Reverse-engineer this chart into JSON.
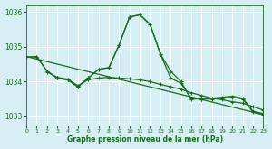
{
  "xlabel": "Graphe pression niveau de la mer (hPa)",
  "ylim": [
    1032.75,
    1036.2
  ],
  "xlim": [
    0,
    23
  ],
  "xticks": [
    0,
    1,
    2,
    3,
    4,
    5,
    6,
    7,
    8,
    9,
    10,
    11,
    12,
    13,
    14,
    15,
    16,
    17,
    18,
    19,
    20,
    21,
    22,
    23
  ],
  "yticks": [
    1033,
    1034,
    1035,
    1036
  ],
  "background_color": "#d6eff5",
  "grid_color": "#ffffff",
  "line_color": "#1a6b1a",
  "series": [
    {
      "x": [
        0,
        1,
        2,
        3,
        4,
        5,
        6,
        7,
        8,
        9,
        10,
        11,
        12,
        13,
        14,
        15,
        16,
        17,
        18,
        19,
        20,
        21,
        22,
        23
      ],
      "y": [
        1034.7,
        1034.72,
        1034.3,
        1034.1,
        1034.05,
        1033.85,
        1034.1,
        1034.35,
        1034.4,
        1035.05,
        1035.85,
        1035.92,
        1035.65,
        1034.8,
        1034.3,
        1034.0,
        1033.5,
        1033.5,
        1033.52,
        1033.55,
        1033.58,
        1033.52,
        1033.15,
        1033.08
      ]
    },
    {
      "x": [
        2,
        3,
        4,
        5,
        6,
        7,
        8,
        9,
        10,
        11,
        12,
        13,
        14,
        15,
        16,
        17,
        18,
        19,
        20,
        21,
        22,
        23
      ],
      "y": [
        1034.28,
        1034.12,
        1034.07,
        1033.88,
        1034.05,
        1034.1,
        1034.12,
        1034.1,
        1034.08,
        1034.05,
        1034.0,
        1033.92,
        1033.85,
        1033.78,
        1033.68,
        1033.6,
        1033.52,
        1033.48,
        1033.42,
        1033.38,
        1033.28,
        1033.18
      ]
    },
    {
      "x": [
        0,
        23
      ],
      "y": [
        1034.72,
        1033.05
      ]
    },
    {
      "x": [
        0,
        1,
        2,
        3,
        4,
        5,
        6,
        7,
        8,
        9,
        10,
        11,
        12,
        13,
        14,
        15,
        16,
        17,
        18,
        19,
        20,
        21,
        22,
        23
      ],
      "y": [
        1034.7,
        1034.72,
        1034.3,
        1034.1,
        1034.05,
        1033.85,
        1034.1,
        1034.35,
        1034.4,
        1035.05,
        1035.85,
        1035.92,
        1035.65,
        1034.8,
        1034.1,
        1033.95,
        1033.52,
        1033.5,
        1033.5,
        1033.52,
        1033.55,
        1033.5,
        1033.12,
        1033.05
      ]
    }
  ],
  "marker": "+",
  "markersize": 3,
  "linewidth": 0.9
}
